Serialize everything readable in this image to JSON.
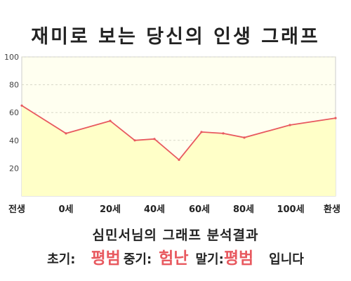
{
  "page_title": "재미로 보는 당신의 인생 그래프",
  "subtitle": "심민서님의 그래프 분석결과",
  "result": {
    "early_label": "초기:",
    "early_value": "평범",
    "mid_label": "중기:",
    "mid_value": "험난",
    "late_label": "말기:",
    "late_value": "평범",
    "ending": "입니다"
  },
  "colors": {
    "line": "#e8595f",
    "fill": "#ffffc8",
    "plot_background": "#fffff0",
    "accent_text": "#e8595f"
  },
  "chart_data": {
    "type": "area",
    "title": "재미로 보는 당신의 인생 그래프",
    "xlabel": "",
    "ylabel": "",
    "ylim": [
      0,
      100
    ],
    "yticks": [
      "20",
      "40",
      "60",
      "80",
      "100"
    ],
    "grid": true,
    "categories": [
      "전생",
      "0세",
      "20세",
      "40세",
      "60세",
      "80세",
      "100세",
      "환생"
    ],
    "points": [
      {
        "x": "전생",
        "y": 65
      },
      {
        "x": "0세",
        "y": 45
      },
      {
        "x": "20세",
        "y": 54
      },
      {
        "x": "30세",
        "y": 40
      },
      {
        "x": "40세",
        "y": 41
      },
      {
        "x": "50세",
        "y": 26
      },
      {
        "x": "60세",
        "y": 46
      },
      {
        "x": "70세",
        "y": 45
      },
      {
        "x": "80세",
        "y": 42
      },
      {
        "x": "100세",
        "y": 51
      },
      {
        "x": "환생",
        "y": 56
      }
    ]
  }
}
